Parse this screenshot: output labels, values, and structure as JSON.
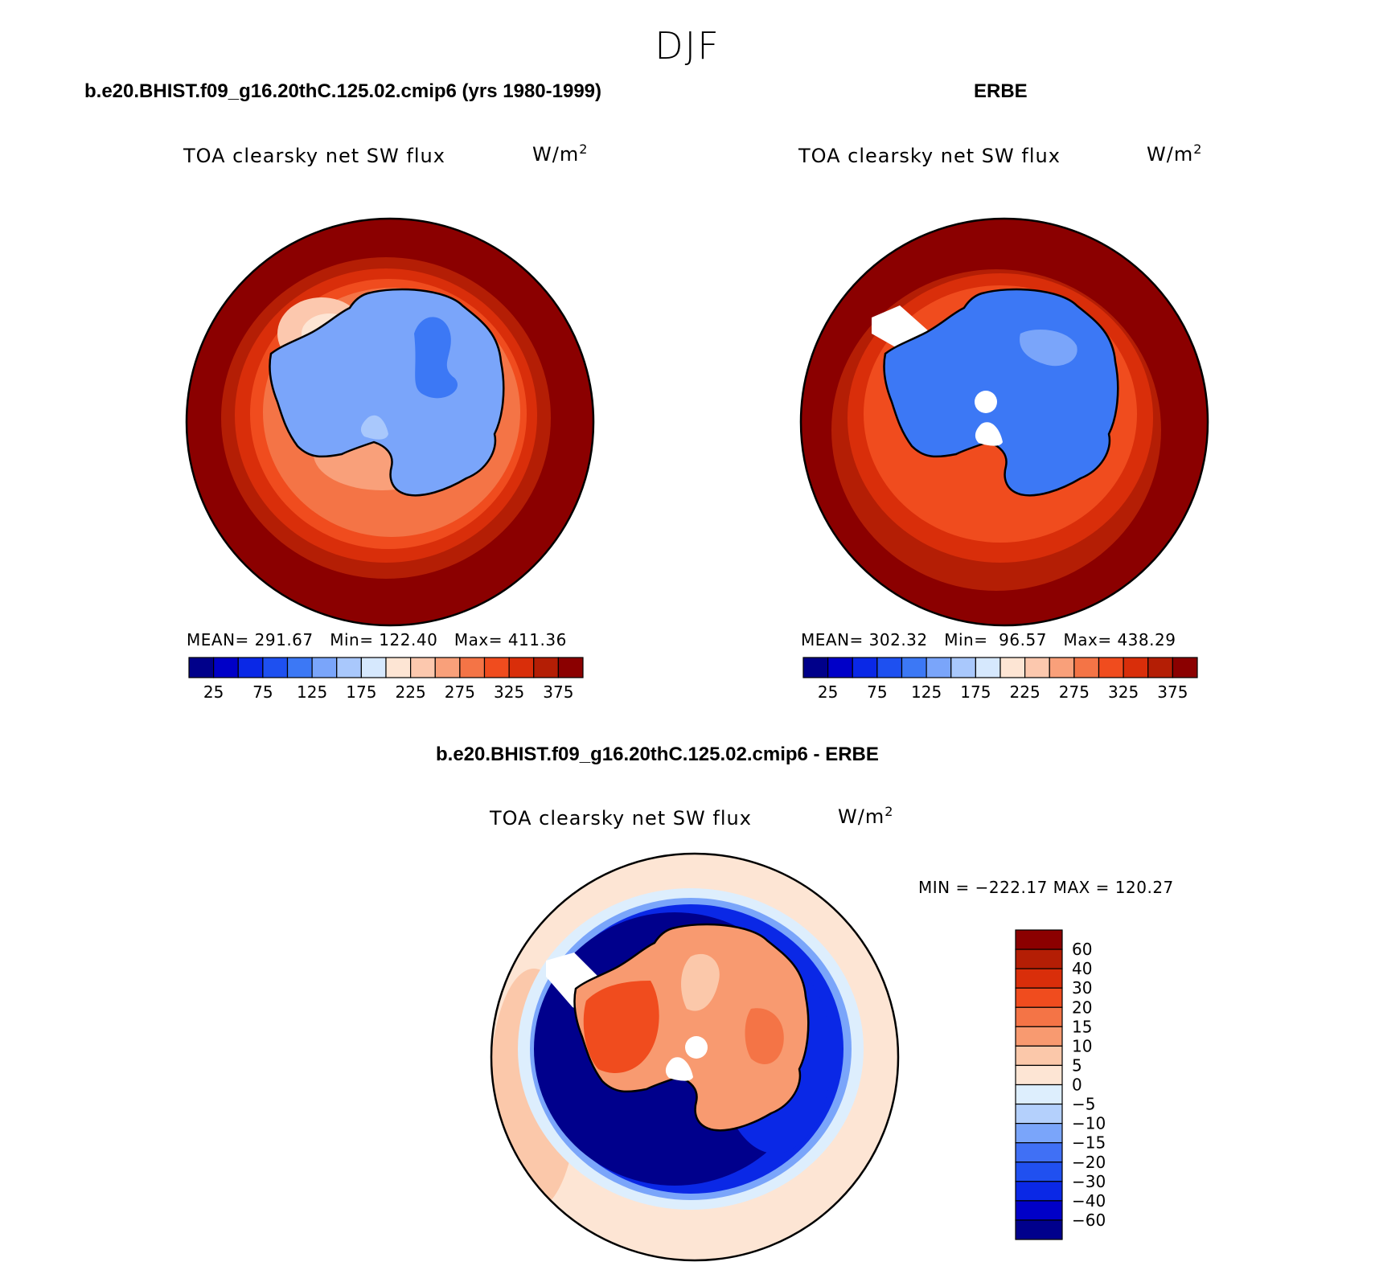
{
  "suptitle": "DJF",
  "colors": {
    "abs_scale": [
      "#00008a",
      "#0000c8",
      "#0a28e6",
      "#1e50f0",
      "#3c78f5",
      "#7aa5fa",
      "#a9c8fc",
      "#d6e8fd",
      "#fde5d4",
      "#fcc8ae",
      "#f9a07a",
      "#f47446",
      "#f04c1e",
      "#d92e0a",
      "#b41e05",
      "#8b0000"
    ],
    "diff_scale": [
      "#00008c",
      "#0000c8",
      "#0a28e6",
      "#2050f0",
      "#4070f5",
      "#7aa5fa",
      "#b4d0fc",
      "#ddeefd",
      "#fde5d4",
      "#fbc8aa",
      "#f89a70",
      "#f47446",
      "#f04c1e",
      "#d92e0a",
      "#b41e05",
      "#8b0000"
    ]
  },
  "chart_data": [
    {
      "type": "heatmap",
      "projection": "south-polar-stereographic",
      "title": "b.e20.BHIST.f09_g16.20thC.125.02.cmip6 (yrs 1980-1999)",
      "variable": "TOA clearsky net SW flux",
      "units_base": "W/m",
      "units_exp": "2",
      "stats_text": "MEAN= 291.67   Min= 122.40   Max= 411.36",
      "stats": {
        "mean": 291.67,
        "min": 122.4,
        "max": 411.36
      },
      "colorbar": {
        "orientation": "horizontal",
        "levels": [
          25,
          50,
          75,
          100,
          125,
          150,
          175,
          200,
          225,
          250,
          275,
          300,
          325,
          350,
          375
        ],
        "tick_labels": [
          "25",
          "75",
          "125",
          "175",
          "225",
          "275",
          "325",
          "375"
        ]
      }
    },
    {
      "type": "heatmap",
      "projection": "south-polar-stereographic",
      "title": "ERBE",
      "variable": "TOA clearsky net SW flux",
      "units_base": "W/m",
      "units_exp": "2",
      "stats_text": "MEAN= 302.32   Min=  96.57   Max= 438.29",
      "stats": {
        "mean": 302.32,
        "min": 96.57,
        "max": 438.29
      },
      "colorbar": {
        "orientation": "horizontal",
        "levels": [
          25,
          50,
          75,
          100,
          125,
          150,
          175,
          200,
          225,
          250,
          275,
          300,
          325,
          350,
          375
        ],
        "tick_labels": [
          "25",
          "75",
          "125",
          "175",
          "225",
          "275",
          "325",
          "375"
        ]
      }
    },
    {
      "type": "heatmap",
      "projection": "south-polar-stereographic",
      "title": "b.e20.BHIST.f09_g16.20thC.125.02.cmip6 - ERBE",
      "variable": "TOA clearsky net SW flux",
      "units_base": "W/m",
      "units_exp": "2",
      "stats_text": "MIN = −222.17 MAX = 120.27",
      "stats": {
        "min": -222.17,
        "max": 120.27
      },
      "colorbar": {
        "orientation": "vertical",
        "levels": [
          -60,
          -40,
          -30,
          -20,
          -15,
          -10,
          -5,
          0,
          5,
          10,
          15,
          20,
          30,
          40,
          60
        ],
        "tick_labels": [
          "60",
          "40",
          "30",
          "20",
          "15",
          "10",
          "5",
          "0",
          "−5",
          "−10",
          "−15",
          "−20",
          "−30",
          "−40",
          "−60"
        ]
      }
    }
  ]
}
